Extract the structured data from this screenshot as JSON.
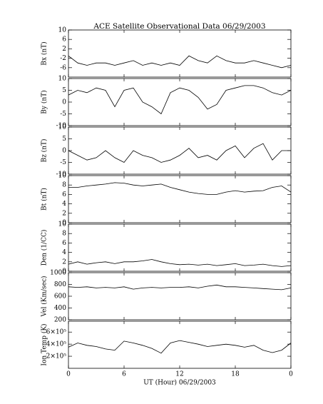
{
  "chart_data": [
    {
      "type": "line",
      "title": "ACE Satellite Observational Data   06/29/2003",
      "ylabel": "Bx (nT)",
      "color": "#000000",
      "x": [
        0,
        1,
        2,
        3,
        4,
        5,
        6,
        7,
        8,
        9,
        10,
        11,
        12,
        13,
        14,
        15,
        16,
        17,
        18,
        19,
        20,
        21,
        22,
        23,
        24
      ],
      "values": [
        -1,
        -4,
        -5,
        -4,
        -4,
        -5,
        -4,
        -3,
        -5,
        -4,
        -5,
        -4,
        -5,
        -1,
        -3,
        -4,
        -1,
        -3,
        -4,
        -4,
        -3,
        -4,
        -5,
        -6,
        -5
      ],
      "xlim": [
        0,
        24
      ],
      "xticks": [
        0,
        6,
        12,
        18,
        {
          "value": 24,
          "label": "0"
        }
      ],
      "ylim": [
        -10,
        10
      ],
      "yticks": [
        -6,
        -2,
        2,
        6,
        10
      ]
    },
    {
      "type": "line",
      "ylabel": "By (nT)",
      "color": "#000000",
      "x": [
        0,
        1,
        2,
        3,
        4,
        5,
        6,
        7,
        8,
        9,
        10,
        11,
        12,
        13,
        14,
        15,
        16,
        17,
        18,
        19,
        20,
        21,
        22,
        23,
        24
      ],
      "values": [
        3,
        5,
        4,
        6,
        5,
        -2,
        5,
        6,
        0,
        -2,
        -5,
        4,
        6,
        5,
        2,
        -3,
        -1,
        5,
        6,
        7,
        7,
        6,
        4,
        3,
        5
      ],
      "xlim": [
        0,
        24
      ],
      "xticks": [
        0,
        6,
        12,
        18,
        {
          "value": 24,
          "label": "0"
        }
      ],
      "ylim": [
        -10,
        10
      ],
      "yticks": [
        -10,
        -5,
        0,
        5,
        10
      ]
    },
    {
      "type": "line",
      "ylabel": "Bz (nT)",
      "color": "#000000",
      "x": [
        0,
        1,
        2,
        3,
        4,
        5,
        6,
        7,
        8,
        9,
        10,
        11,
        12,
        13,
        14,
        15,
        16,
        17,
        18,
        19,
        20,
        21,
        22,
        23,
        24
      ],
      "values": [
        0,
        -2,
        -4,
        -3,
        0,
        -3,
        -5,
        0,
        -2,
        -3,
        -5,
        -4,
        -2,
        1,
        -3,
        -2,
        -4,
        0,
        2,
        -3,
        1,
        3,
        -4,
        0,
        0
      ],
      "xlim": [
        0,
        24
      ],
      "xticks": [
        0,
        6,
        12,
        18,
        {
          "value": 24,
          "label": "0"
        }
      ],
      "ylim": [
        -10,
        10
      ],
      "yticks": [
        -10,
        -5,
        0,
        5,
        10
      ]
    },
    {
      "type": "line",
      "ylabel": "Bt (nT)",
      "color": "#000000",
      "x": [
        0,
        1,
        2,
        3,
        4,
        5,
        6,
        7,
        8,
        9,
        10,
        11,
        12,
        13,
        14,
        15,
        16,
        17,
        18,
        19,
        20,
        21,
        22,
        23,
        24
      ],
      "values": [
        7.5,
        7.5,
        7.8,
        8,
        8.2,
        8.5,
        8.4,
        8,
        7.8,
        8,
        8.2,
        7.5,
        7,
        6.5,
        6.2,
        6,
        6,
        6.5,
        6.8,
        6.5,
        6.7,
        6.8,
        7.5,
        7.8,
        6.5
      ],
      "xlim": [
        0,
        24
      ],
      "xticks": [
        0,
        6,
        12,
        18,
        {
          "value": 24,
          "label": "0"
        }
      ],
      "ylim": [
        0,
        10
      ],
      "yticks": [
        0,
        2,
        4,
        6,
        8,
        10
      ]
    },
    {
      "type": "line",
      "ylabel": "Den (1/CC)",
      "color": "#000000",
      "x": [
        0,
        1,
        2,
        3,
        4,
        5,
        6,
        7,
        8,
        9,
        10,
        11,
        12,
        13,
        14,
        15,
        16,
        17,
        18,
        19,
        20,
        21,
        22,
        23,
        24
      ],
      "values": [
        1.5,
        2,
        1.5,
        1.8,
        2,
        1.6,
        2,
        2,
        2.2,
        2.5,
        2,
        1.6,
        1.4,
        1.5,
        1.3,
        1.5,
        1.2,
        1.4,
        1.6,
        1.2,
        1.3,
        1.5,
        1.2,
        1,
        1.2
      ],
      "xlim": [
        0,
        24
      ],
      "xticks": [
        0,
        6,
        12,
        18,
        {
          "value": 24,
          "label": "0"
        }
      ],
      "ylim": [
        0,
        10
      ],
      "yticks": [
        0,
        2,
        4,
        6,
        8,
        10
      ]
    },
    {
      "type": "line",
      "ylabel": "Vel (Km/sec)",
      "color": "#000000",
      "x": [
        0,
        1,
        2,
        3,
        4,
        5,
        6,
        7,
        8,
        9,
        10,
        11,
        12,
        13,
        14,
        15,
        16,
        17,
        18,
        19,
        20,
        21,
        22,
        23,
        24
      ],
      "values": [
        760,
        750,
        760,
        740,
        750,
        740,
        760,
        720,
        740,
        750,
        740,
        750,
        750,
        760,
        740,
        770,
        790,
        760,
        760,
        750,
        740,
        730,
        720,
        710,
        740
      ],
      "xlim": [
        0,
        24
      ],
      "xticks": [
        0,
        6,
        12,
        18,
        {
          "value": 24,
          "label": "0"
        }
      ],
      "ylim": [
        200,
        1000
      ],
      "yticks": [
        200,
        400,
        600,
        800,
        1000
      ]
    },
    {
      "type": "line",
      "ylabel": "Ion Temp (K)",
      "xlabel": "UT (Hour)   06/29/2003",
      "color": "#000000",
      "x": [
        0,
        1,
        2,
        3,
        4,
        5,
        6,
        7,
        8,
        9,
        10,
        11,
        12,
        13,
        14,
        15,
        16,
        17,
        18,
        19,
        20,
        21,
        22,
        23,
        24
      ],
      "values": [
        350000,
        420000,
        380000,
        360000,
        320000,
        300000,
        450000,
        420000,
        380000,
        330000,
        250000,
        420000,
        460000,
        430000,
        400000,
        360000,
        380000,
        400000,
        380000,
        350000,
        380000,
        300000,
        260000,
        300000,
        420000
      ],
      "xlim": [
        0,
        24
      ],
      "xticks": [
        0,
        6,
        12,
        18,
        {
          "value": 24,
          "label": "0"
        }
      ],
      "ylim": [
        0,
        780000
      ],
      "yticks": [
        {
          "value": 200000,
          "label": "2×10⁵"
        },
        {
          "value": 400000,
          "label": "4×10⁵"
        },
        {
          "value": 600000,
          "label": "6×10⁵"
        }
      ]
    }
  ]
}
